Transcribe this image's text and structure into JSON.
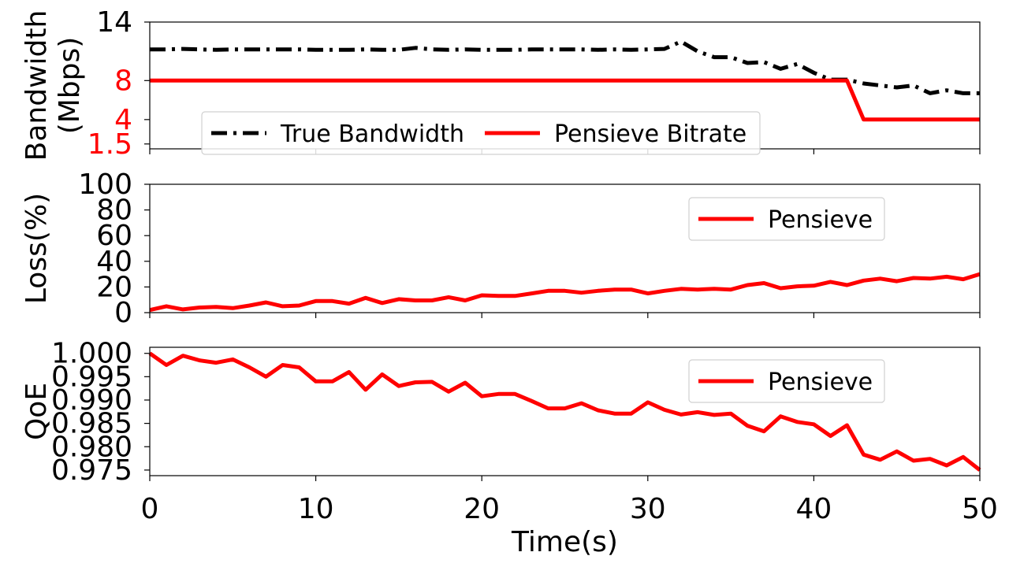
{
  "chart_data": [
    {
      "type": "line",
      "ylabel": [
        "Bandwidth",
        "(Mbps)"
      ],
      "xlim": [
        0,
        50
      ],
      "ylim": [
        1,
        14
      ],
      "yticks": [
        1.5,
        4,
        8,
        14
      ],
      "ytick_colors": [
        "#ff0000",
        "#ff0000",
        "#ff0000",
        "#000000"
      ],
      "legend": "lower-left",
      "series": [
        {
          "name": "True Bandwidth",
          "color": "#000000",
          "style": "dashdot",
          "x": [
            0,
            1,
            2,
            3,
            4,
            5,
            6,
            7,
            8,
            9,
            10,
            11,
            12,
            13,
            14,
            15,
            16,
            17,
            18,
            19,
            20,
            21,
            22,
            23,
            24,
            25,
            26,
            27,
            28,
            29,
            30,
            31,
            32,
            33,
            34,
            35,
            36,
            37,
            38,
            39,
            40,
            41,
            42,
            43,
            44,
            45,
            46,
            47,
            48,
            49,
            50
          ],
          "y": [
            11.2,
            11.2,
            11.25,
            11.2,
            11.15,
            11.2,
            11.2,
            11.2,
            11.2,
            11.2,
            11.15,
            11.15,
            11.15,
            11.2,
            11.15,
            11.15,
            11.35,
            11.2,
            11.15,
            11.2,
            11.15,
            11.15,
            11.15,
            11.2,
            11.2,
            11.2,
            11.2,
            11.15,
            11.2,
            11.15,
            11.2,
            11.25,
            12.0,
            11.0,
            10.4,
            10.4,
            9.8,
            9.9,
            9.2,
            9.7,
            8.8,
            8.1,
            8.1,
            7.7,
            7.5,
            7.3,
            7.5,
            6.7,
            7.0,
            6.7,
            6.7
          ]
        },
        {
          "name": "Pensieve Bitrate",
          "color": "#ff0000",
          "style": "solid",
          "x": [
            0,
            42,
            43,
            50
          ],
          "y": [
            8,
            8,
            4,
            4
          ]
        }
      ]
    },
    {
      "type": "line",
      "ylabel": "Loss(%)",
      "xlim": [
        0,
        50
      ],
      "ylim": [
        0,
        100
      ],
      "yticks": [
        0,
        20,
        40,
        60,
        80,
        100
      ],
      "legend": "upper-right",
      "series": [
        {
          "name": "Pensieve",
          "color": "#ff0000",
          "style": "solid",
          "x": [
            0,
            1,
            2,
            3,
            4,
            5,
            6,
            7,
            8,
            9,
            10,
            11,
            12,
            13,
            14,
            15,
            16,
            17,
            18,
            19,
            20,
            21,
            22,
            23,
            24,
            25,
            26,
            27,
            28,
            29,
            30,
            31,
            32,
            33,
            34,
            35,
            36,
            37,
            38,
            39,
            40,
            41,
            42,
            43,
            44,
            45,
            46,
            47,
            48,
            49,
            50
          ],
          "y": [
            2,
            5,
            2.5,
            4,
            4.5,
            3.5,
            5.5,
            8,
            5,
            5.5,
            9,
            9,
            7,
            11.5,
            7.5,
            10.5,
            9.5,
            9.5,
            12,
            9.5,
            13.5,
            13,
            13,
            15,
            17,
            17,
            15.5,
            17,
            18,
            18,
            15,
            17,
            18.5,
            18,
            18.5,
            18,
            21.5,
            23,
            19,
            20.5,
            21,
            24,
            21.5,
            25,
            26.5,
            24.5,
            27,
            26.5,
            28,
            26,
            30
          ]
        }
      ]
    },
    {
      "type": "line",
      "ylabel": "QoE",
      "xlabel": "Time(s)",
      "xlim": [
        0,
        50
      ],
      "ylim": [
        0.9738,
        1.0013
      ],
      "yticks": [
        "1.000",
        "0.995",
        "0.990",
        "0.985",
        "0.980",
        "0.975"
      ],
      "xticks": [
        0,
        10,
        20,
        30,
        40,
        50
      ],
      "legend": "upper-right",
      "series": [
        {
          "name": "Pensieve",
          "color": "#ff0000",
          "style": "solid",
          "x": [
            0,
            1,
            2,
            3,
            4,
            5,
            6,
            7,
            8,
            9,
            10,
            11,
            12,
            13,
            14,
            15,
            16,
            17,
            18,
            19,
            20,
            21,
            22,
            23,
            24,
            25,
            26,
            27,
            28,
            29,
            30,
            31,
            32,
            33,
            34,
            35,
            36,
            37,
            38,
            39,
            40,
            41,
            42,
            43,
            44,
            45,
            46,
            47,
            48,
            49,
            50
          ],
          "y": [
            1.0,
            0.9975,
            0.9995,
            0.9985,
            0.998,
            0.9987,
            0.997,
            0.995,
            0.9975,
            0.997,
            0.994,
            0.994,
            0.996,
            0.9922,
            0.9955,
            0.993,
            0.9938,
            0.9939,
            0.9918,
            0.9937,
            0.9908,
            0.9913,
            0.9913,
            0.9898,
            0.9882,
            0.9882,
            0.9893,
            0.9878,
            0.9871,
            0.9871,
            0.9895,
            0.9879,
            0.9869,
            0.9874,
            0.9868,
            0.9871,
            0.9845,
            0.9833,
            0.9865,
            0.9853,
            0.9848,
            0.9823,
            0.9846,
            0.9783,
            0.9772,
            0.979,
            0.977,
            0.9774,
            0.976,
            0.9778,
            0.975
          ]
        }
      ]
    }
  ]
}
